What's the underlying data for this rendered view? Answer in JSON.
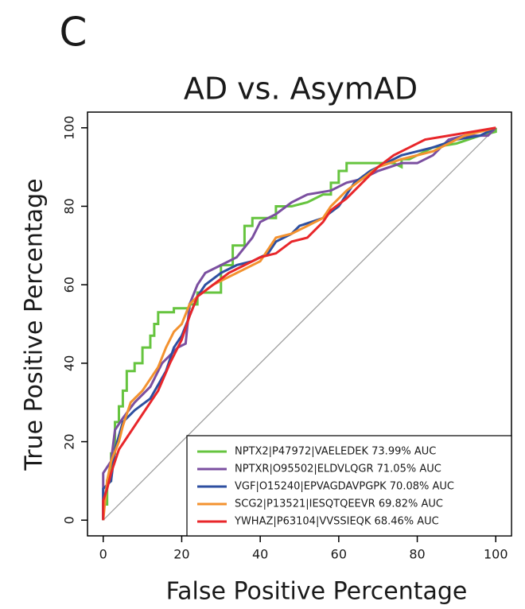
{
  "chart_data": {
    "type": "line",
    "panel_label": "C",
    "title": "AD vs. AsymAD",
    "x_label": "False Positive Percentage",
    "y_label": "True Positive Percentage",
    "xlim": [
      -4,
      104
    ],
    "ylim": [
      -4,
      104
    ],
    "xticks": [
      0,
      20,
      40,
      60,
      80,
      100
    ],
    "yticks": [
      0,
      20,
      40,
      60,
      80,
      100
    ],
    "diagonal": true,
    "legend": "bottom-right",
    "series": [
      {
        "name": "NPTX2|P47972|VAELEDEK 73.99% AUC",
        "color": "#66c43f",
        "x": [
          0,
          0,
          1,
          1,
          2,
          2,
          3,
          3,
          4,
          4,
          5,
          5,
          6,
          6,
          8,
          8,
          10,
          10,
          12,
          12,
          13,
          13,
          14,
          14,
          18,
          18,
          22,
          22,
          24,
          24,
          30,
          30,
          33,
          33,
          36,
          36,
          38,
          38,
          44,
          44,
          48,
          52,
          56,
          58,
          58,
          60,
          60,
          62,
          62,
          74,
          76,
          76,
          78,
          80,
          84,
          90,
          96,
          100,
          100
        ],
        "values": [
          0,
          4,
          4,
          10,
          10,
          17,
          17,
          25,
          25,
          29,
          29,
          33,
          33,
          38,
          38,
          40,
          40,
          44,
          44,
          47,
          47,
          50,
          50,
          53,
          53,
          54,
          54,
          55,
          55,
          58,
          58,
          65,
          65,
          70,
          70,
          75,
          75,
          77,
          77,
          80,
          80,
          81,
          83,
          83,
          86,
          86,
          89,
          89,
          91,
          91,
          90,
          92,
          92,
          93,
          95,
          96,
          98,
          99,
          100
        ]
      },
      {
        "name": "NPTXR|O95502|ELDVLQGR 71.05% AUC",
        "color": "#7b4fa0",
        "x": [
          0,
          0,
          2,
          3,
          5,
          8,
          12,
          15,
          19,
          21,
          22,
          24,
          26,
          30,
          34,
          38,
          40,
          44,
          48,
          52,
          58,
          62,
          66,
          70,
          76,
          80,
          84,
          88,
          92,
          98,
          100
        ],
        "values": [
          0,
          12,
          15,
          23,
          26,
          30,
          34,
          40,
          44,
          45,
          55,
          60,
          63,
          65,
          67,
          72,
          76,
          78,
          81,
          83,
          84,
          86,
          87,
          89,
          91,
          91,
          93,
          97,
          98,
          98,
          100
        ]
      },
      {
        "name": "VGF|O15240|EPVAGDAVPGPK 70.08% AUC",
        "color": "#2e4fa0",
        "x": [
          0,
          0,
          2,
          3,
          5,
          8,
          12,
          16,
          18,
          20,
          22,
          24,
          26,
          30,
          34,
          38,
          42,
          44,
          48,
          50,
          56,
          60,
          64,
          68,
          72,
          76,
          84,
          90,
          96,
          100
        ],
        "values": [
          0,
          8,
          10,
          18,
          25,
          28,
          31,
          38,
          44,
          47,
          52,
          57,
          60,
          63,
          65,
          66,
          68,
          71,
          73,
          75,
          77,
          80,
          86,
          89,
          91,
          93,
          95,
          97,
          98,
          100
        ]
      },
      {
        "name": "SCG2|P13521|IESQTQEEVR 69.82% AUC",
        "color": "#f3922f",
        "x": [
          0,
          1,
          2,
          4,
          5,
          7,
          10,
          14,
          16,
          18,
          20,
          22,
          24,
          28,
          32,
          36,
          40,
          44,
          48,
          52,
          56,
          58,
          62,
          66,
          70,
          76,
          84,
          88,
          92,
          96,
          100
        ],
        "values": [
          0,
          10,
          15,
          20,
          24,
          30,
          33,
          39,
          44,
          48,
          50,
          55,
          57,
          60,
          62,
          64,
          66,
          72,
          73,
          75,
          77,
          80,
          84,
          87,
          90,
          92,
          94,
          96,
          98,
          99,
          100
        ]
      },
      {
        "name": "YWHAZ|P63104|VVSSIEQK 68.46% AUC",
        "color": "#e8262a",
        "x": [
          0,
          0,
          1,
          2,
          3,
          4,
          6,
          8,
          10,
          14,
          17,
          20,
          22,
          24,
          28,
          32,
          36,
          40,
          44,
          48,
          52,
          56,
          58,
          62,
          66,
          70,
          74,
          78,
          82,
          88,
          94,
          100
        ],
        "values": [
          0,
          5,
          8,
          12,
          15,
          18,
          21,
          24,
          27,
          33,
          40,
          46,
          52,
          57,
          60,
          63,
          65,
          67,
          68,
          71,
          72,
          76,
          79,
          82,
          86,
          90,
          93,
          95,
          97,
          98,
          99,
          100
        ]
      }
    ]
  }
}
